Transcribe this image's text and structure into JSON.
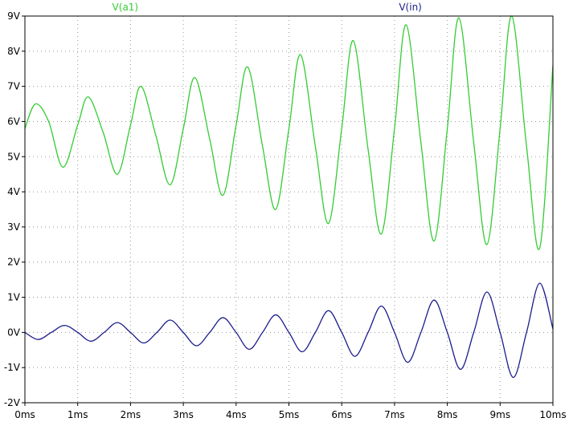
{
  "chart_data": {
    "type": "line",
    "title": "",
    "xlabel": "",
    "ylabel": "",
    "xlim": [
      0,
      10
    ],
    "ylim": [
      -2,
      9
    ],
    "x_unit": "ms",
    "y_unit": "V",
    "grid": true,
    "legend": "top",
    "x_ticks": [
      "0ms",
      "1ms",
      "2ms",
      "3ms",
      "4ms",
      "5ms",
      "6ms",
      "7ms",
      "8ms",
      "9ms",
      "10ms"
    ],
    "y_ticks": [
      "-2V",
      "-1V",
      "0V",
      "1V",
      "2V",
      "3V",
      "4V",
      "5V",
      "6V",
      "7V",
      "8V",
      "9V"
    ],
    "x_tick_values": [
      0,
      1,
      2,
      3,
      4,
      5,
      6,
      7,
      8,
      9,
      10
    ],
    "y_tick_values": [
      -2,
      -1,
      0,
      1,
      2,
      3,
      4,
      5,
      6,
      7,
      8,
      9
    ],
    "series": [
      {
        "name": "V(a1)",
        "color": "#33cc33",
        "x": [
          0,
          0.2,
          0.45,
          0.72,
          1.0,
          1.2,
          1.48,
          1.75,
          2.0,
          2.2,
          2.48,
          2.75,
          3.0,
          3.22,
          3.5,
          3.75,
          4.0,
          4.22,
          4.5,
          4.75,
          5.0,
          5.22,
          5.5,
          5.75,
          6.0,
          6.22,
          6.5,
          6.75,
          7.0,
          7.22,
          7.5,
          7.75,
          8.0,
          8.22,
          8.5,
          8.75,
          9.0,
          9.22,
          9.5,
          9.75,
          10.0
        ],
        "y": [
          5.8,
          6.5,
          6.0,
          4.7,
          5.9,
          6.7,
          5.7,
          4.5,
          5.9,
          7.0,
          5.6,
          4.2,
          5.8,
          7.25,
          5.5,
          3.9,
          5.9,
          7.55,
          5.3,
          3.5,
          5.8,
          7.9,
          5.3,
          3.1,
          5.8,
          8.3,
          5.2,
          2.8,
          5.8,
          8.75,
          5.4,
          2.6,
          5.8,
          8.95,
          5.4,
          2.5,
          5.8,
          9.0,
          5.3,
          2.4,
          7.6
        ]
      },
      {
        "name": "V(in)",
        "color": "#1c1c8c",
        "x": [
          0,
          0.25,
          0.5,
          0.75,
          1.0,
          1.25,
          1.5,
          1.75,
          2.0,
          2.25,
          2.5,
          2.75,
          3.0,
          3.25,
          3.5,
          3.75,
          4.0,
          4.25,
          4.5,
          4.75,
          5.0,
          5.25,
          5.5,
          5.75,
          6.0,
          6.25,
          6.5,
          6.75,
          7.0,
          7.25,
          7.5,
          7.75,
          8.0,
          8.25,
          8.5,
          8.75,
          9.0,
          9.25,
          9.5,
          9.75,
          10.0
        ],
        "y": [
          0,
          -0.2,
          0,
          0.2,
          0,
          -0.25,
          0,
          0.28,
          0,
          -0.3,
          0,
          0.35,
          0,
          -0.38,
          0,
          0.42,
          0,
          -0.48,
          0,
          0.5,
          0,
          -0.55,
          0,
          0.62,
          0,
          -0.68,
          0,
          0.75,
          0,
          -0.85,
          0,
          0.92,
          0,
          -1.05,
          0,
          1.15,
          0,
          -1.28,
          0,
          1.4,
          0.1
        ]
      }
    ]
  }
}
